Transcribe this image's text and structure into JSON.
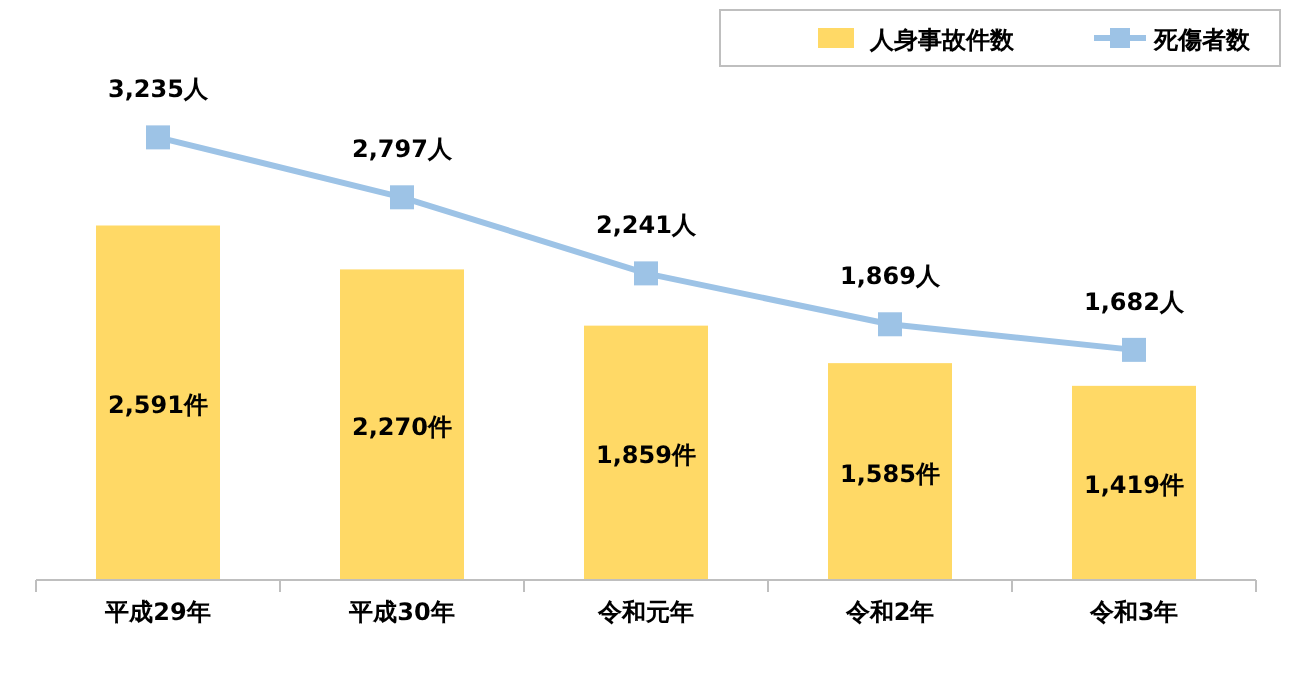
{
  "chart_data": {
    "type": "bar",
    "categories": [
      "平成29年",
      "平成30年",
      "令和元年",
      "令和2年",
      "令和3年"
    ],
    "series": [
      {
        "name": "人身事故件数",
        "color": "#ffd966",
        "values": [
          2591,
          2270,
          1859,
          1585,
          1419
        ],
        "value_labels": [
          "2,591件",
          "2,270件",
          "1,859件",
          "1,585件",
          "1,419件"
        ]
      },
      {
        "name": "死傷者数",
        "type": "line",
        "color": "#9dc3e6",
        "values": [
          3235,
          2797,
          2241,
          1869,
          1682
        ],
        "value_labels": [
          "3,235人",
          "2,797人",
          "2,241人",
          "1,869人",
          "1,682人"
        ]
      }
    ],
    "marker": "square",
    "legend": "top right",
    "grid": false
  }
}
